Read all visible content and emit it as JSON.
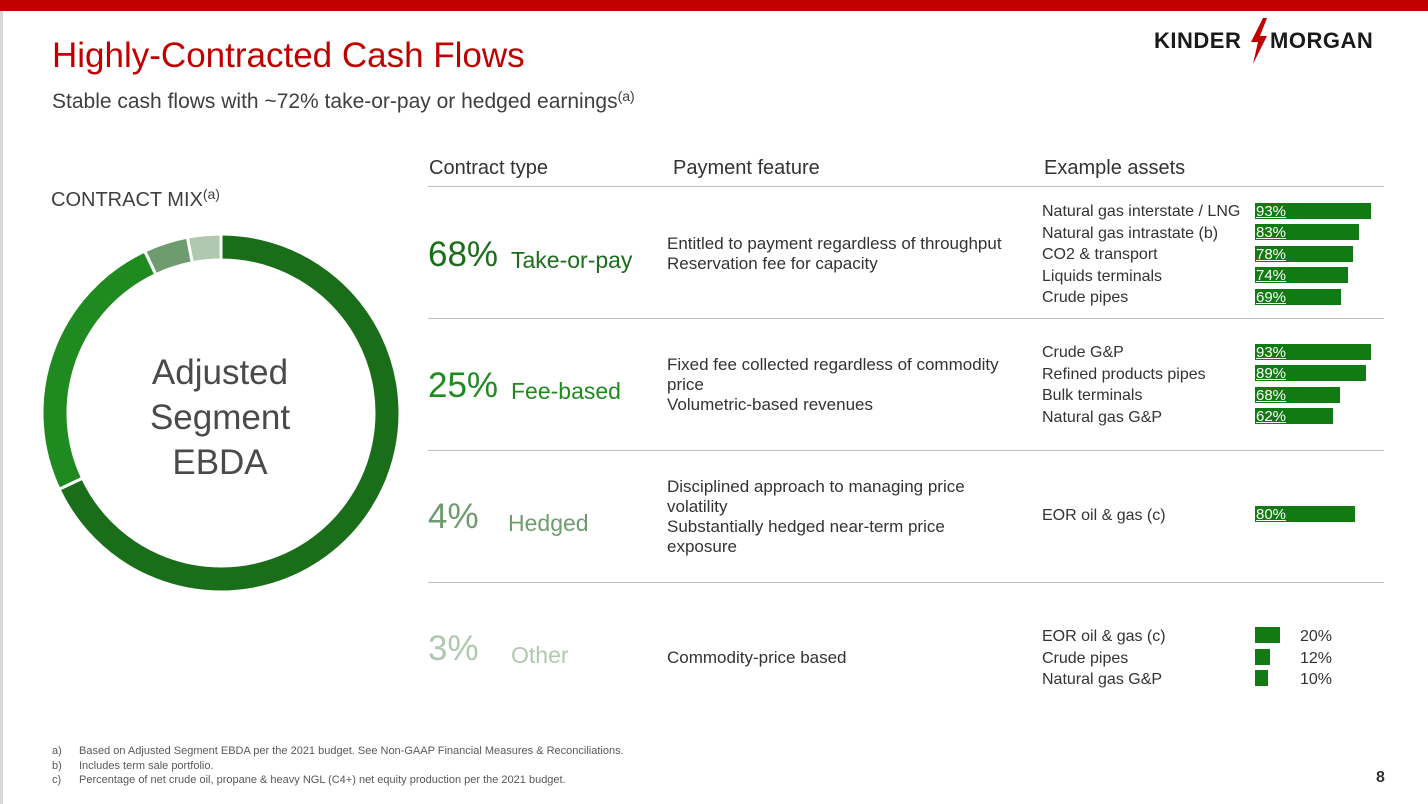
{
  "header": {
    "title": "Highly-Contracted Cash Flows",
    "subtitle": "Stable cash flows with ~72% take-or-pay or hedged earnings",
    "subtitle_note": "(a)",
    "logo_left": "KINDER",
    "logo_right": "MORGAN"
  },
  "colors": {
    "brand_red": "#c00000",
    "take_or_pay": "#1a6e1a",
    "fee_based": "#1f8a1f",
    "hedged": "#6e9c6e",
    "other": "#b0c8b0",
    "bar": "#127a12"
  },
  "contract_mix": {
    "label": "CONTRACT MIX",
    "label_note": "(a)",
    "center_lines": [
      "Adjusted",
      "Segment",
      "EBDA"
    ]
  },
  "table": {
    "headers": {
      "contract_type": "Contract type",
      "payment_feature": "Payment feature",
      "example_assets": "Example assets"
    },
    "rows": [
      {
        "pct": "68%",
        "type": "Take-or-pay",
        "features": [
          "Entitled to payment regardless of throughput",
          "Reservation fee for capacity"
        ],
        "assets": [
          {
            "name": "Natural gas interstate / LNG",
            "value": 93,
            "label": "93%"
          },
          {
            "name": "Natural gas intrastate (b)",
            "value": 83,
            "label": "83%"
          },
          {
            "name": "CO2 & transport",
            "value": 78,
            "label": "78%"
          },
          {
            "name": "Liquids terminals",
            "value": 74,
            "label": "74%"
          },
          {
            "name": "Crude pipes",
            "value": 69,
            "label": "69%"
          }
        ]
      },
      {
        "pct": "25%",
        "type": "Fee-based",
        "features": [
          "Fixed fee collected regardless of commodity",
          "price",
          "Volumetric-based revenues"
        ],
        "assets": [
          {
            "name": "Crude G&P",
            "value": 93,
            "label": "93%"
          },
          {
            "name": "Refined products pipes",
            "value": 89,
            "label": "89%"
          },
          {
            "name": "Bulk terminals",
            "value": 68,
            "label": "68%"
          },
          {
            "name": "Natural gas G&P",
            "value": 62,
            "label": "62%"
          }
        ]
      },
      {
        "pct": "4%",
        "type": "Hedged",
        "features": [
          "Disciplined approach to managing price",
          "volatility",
          "Substantially hedged near-term price",
          "exposure"
        ],
        "assets": [
          {
            "name": "EOR oil & gas (c)",
            "value": 80,
            "label": "80%"
          }
        ]
      },
      {
        "pct": "3%",
        "type": "Other",
        "features": [
          "Commodity-price based"
        ],
        "assets": [
          {
            "name": "EOR oil & gas (c)",
            "value": 20,
            "label": "20%"
          },
          {
            "name": "Crude pipes",
            "value": 12,
            "label": "12%"
          },
          {
            "name": "Natural gas G&P",
            "value": 10,
            "label": "10%"
          }
        ]
      }
    ]
  },
  "chart_data": {
    "type": "pie",
    "style": "donut",
    "title": "CONTRACT MIX",
    "center_label": "Adjusted Segment EBDA",
    "categories": [
      "Take-or-pay",
      "Fee-based",
      "Hedged",
      "Other"
    ],
    "values": [
      68,
      25,
      4,
      3
    ],
    "colors": [
      "#1a6e1a",
      "#1f8a1f",
      "#6e9c6e",
      "#b0c8b0"
    ],
    "start_angle_deg": 0,
    "direction": "clockwise",
    "asset_bars": {
      "type": "bar",
      "orientation": "horizontal",
      "xlim": [
        0,
        100
      ],
      "series": [
        {
          "categories": [
            "Natural gas interstate / LNG",
            "Natural gas intrastate (b)",
            "CO2 & transport",
            "Liquids terminals",
            "Crude pipes"
          ],
          "values": [
            93,
            83,
            78,
            74,
            69
          ]
        },
        {
          "categories": [
            "Crude G&P",
            "Refined products pipes",
            "Bulk terminals",
            "Natural gas G&P"
          ],
          "values": [
            93,
            89,
            68,
            62
          ]
        },
        {
          "categories": [
            "EOR oil & gas (c)"
          ],
          "values": [
            80
          ]
        },
        {
          "categories": [
            "EOR oil & gas (c)",
            "Crude pipes",
            "Natural gas G&P"
          ],
          "values": [
            20,
            12,
            10
          ]
        }
      ]
    }
  },
  "footnotes": [
    {
      "key": "a)",
      "text": "Based on Adjusted Segment EBDA per the 2021 budget. See Non-GAAP Financial Measures & Reconciliations."
    },
    {
      "key": "b)",
      "text": "Includes term sale portfolio."
    },
    {
      "key": "c)",
      "text": "Percentage of net crude oil, propane & heavy NGL (C4+) net equity production per the 2021 budget."
    }
  ],
  "page_number": "8"
}
